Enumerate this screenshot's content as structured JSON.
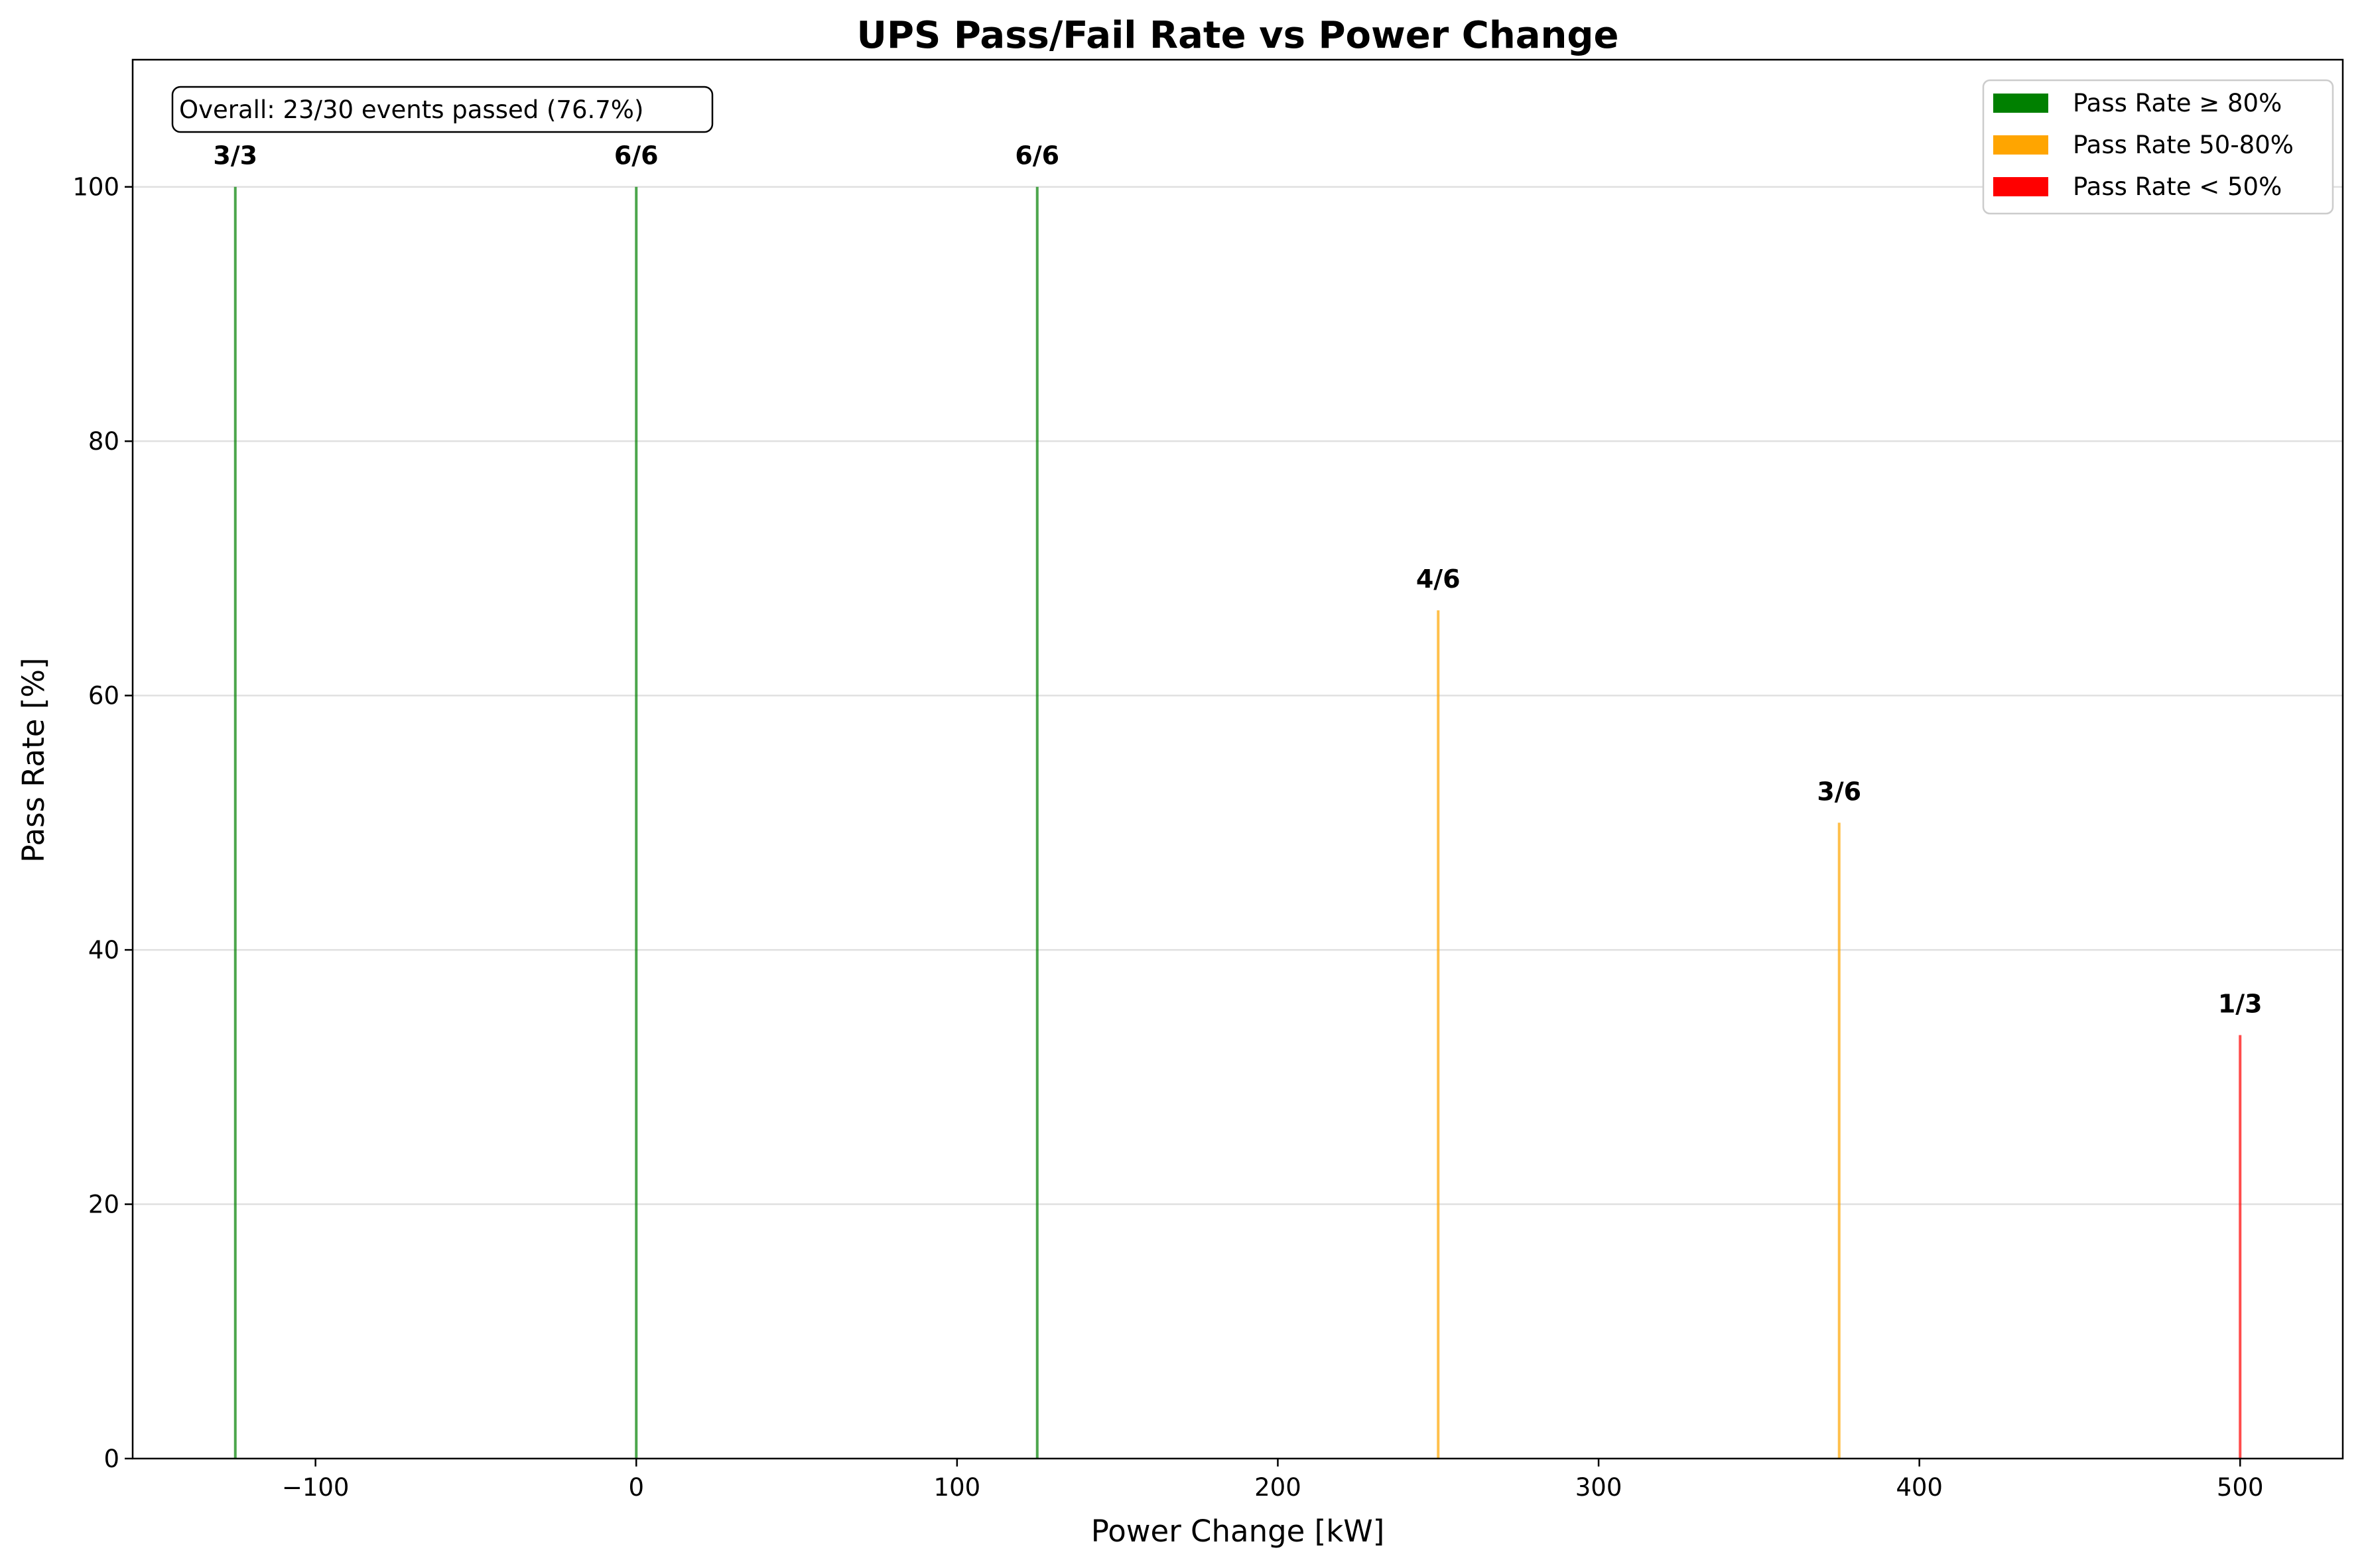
{
  "chart_data": {
    "type": "bar",
    "title": "UPS Pass/Fail Rate vs Power Change",
    "xlabel": "Power Change [kW]",
    "ylabel": "Pass Rate [%]",
    "xlim": [
      -157,
      532
    ],
    "ylim": [
      0,
      110
    ],
    "x_ticks": [
      -100,
      0,
      100,
      200,
      300,
      400,
      500
    ],
    "x_tick_labels": [
      "−100",
      "0",
      "100",
      "200",
      "300",
      "400",
      "500"
    ],
    "y_ticks": [
      0,
      20,
      40,
      60,
      80,
      100
    ],
    "y_tick_labels": [
      "0",
      "20",
      "40",
      "60",
      "80",
      "100"
    ],
    "grid": "horizontal",
    "legend_position": "top-right",
    "legend": [
      {
        "label": "Pass Rate ≥ 80%",
        "color": "#008000"
      },
      {
        "label": "Pass Rate 50-80%",
        "color": "#ffa500"
      },
      {
        "label": "Pass Rate < 50%",
        "color": "#ff0000"
      }
    ],
    "annotation": "Overall: 23/30 events passed (76.7%)",
    "bars": [
      {
        "x": -125,
        "value": 100,
        "label": "3/3",
        "color": "#008000"
      },
      {
        "x": 0,
        "value": 100,
        "label": "6/6",
        "color": "#008000"
      },
      {
        "x": 125,
        "value": 100,
        "label": "6/6",
        "color": "#008000"
      },
      {
        "x": 250,
        "value": 66.7,
        "label": "4/6",
        "color": "#ffa500"
      },
      {
        "x": 375,
        "value": 50,
        "label": "3/6",
        "color": "#ffa500"
      },
      {
        "x": 500,
        "value": 33.3,
        "label": "1/3",
        "color": "#ff0000"
      }
    ]
  }
}
